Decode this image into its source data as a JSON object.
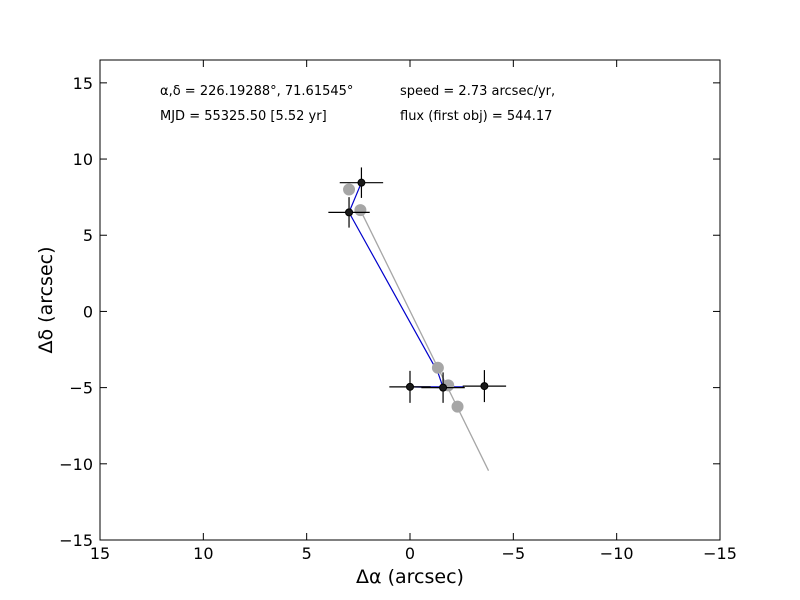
{
  "chart_data": {
    "type": "scatter",
    "xlabel": "Δα (arcsec)",
    "ylabel": "Δδ (arcsec)",
    "xlim": [
      15,
      -15
    ],
    "ylim": [
      -15,
      16.5
    ],
    "xticks": [
      15,
      10,
      5,
      0,
      -5,
      -10,
      -15
    ],
    "yticks": [
      -15,
      -10,
      -5,
      0,
      5,
      10,
      15
    ],
    "xtick_labels": [
      "15",
      "10",
      "5",
      "0",
      "−5",
      "−10",
      "−15"
    ],
    "ytick_labels": [
      "−15",
      "−10",
      "−5",
      "0",
      "5",
      "10",
      "15"
    ],
    "grid": false,
    "annotations": {
      "coords": "α,δ = 226.19288°, 71.61545°",
      "mjd": "MJD = 55325.50 [5.52 yr]",
      "speed": "speed = 2.73 arcsec/yr,",
      "flux": "flux (first obj) = 544.17"
    },
    "colors": {
      "observed": "#1a1a1a",
      "errorbar": "#000000",
      "path": "#0000cc",
      "predicted": "#a6a6a6",
      "fit_line": "#a6a6a6"
    },
    "series": [
      {
        "role": "observed",
        "x": [
          2.35,
          2.95,
          0.0,
          -1.6,
          -3.6
        ],
        "y": [
          8.45,
          6.5,
          -4.95,
          -5.0,
          -4.9
        ],
        "xerr": [
          1.05,
          1.0,
          1.0,
          1.05,
          1.05
        ],
        "yerr": [
          1.0,
          1.0,
          1.05,
          1.0,
          1.05
        ]
      },
      {
        "role": "predicted",
        "x": [
          2.95,
          2.4,
          -1.35,
          -1.85,
          -2.3
        ],
        "y": [
          8.0,
          6.65,
          -3.7,
          -4.85,
          -6.25
        ]
      },
      {
        "role": "path",
        "x": [
          2.35,
          2.95,
          -1.35,
          -1.6,
          0.0,
          -2.6
        ],
        "y": [
          8.45,
          6.5,
          -4.0,
          -5.0,
          -4.95,
          -4.95
        ]
      },
      {
        "role": "fit_line",
        "x": [
          2.4,
          -3.8
        ],
        "y": [
          6.65,
          -10.45
        ]
      }
    ]
  }
}
